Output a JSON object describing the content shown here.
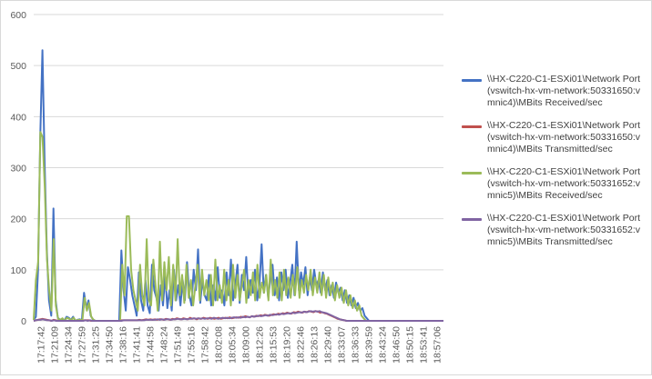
{
  "chart_data": {
    "type": "line",
    "title": "",
    "xlabel": "",
    "ylabel": "",
    "ylim": [
      0,
      600
    ],
    "yticks": [
      0,
      100,
      200,
      300,
      400,
      500,
      600
    ],
    "grid": true,
    "legend_position": "right",
    "x_tick_labels": [
      "17:17:42",
      "17:21:09",
      "17:24:34",
      "17:27:59",
      "17:31:25",
      "17:34:50",
      "17:38:16",
      "17:41:41",
      "17:44:58",
      "17:48:24",
      "17:51:49",
      "17:55:16",
      "17:58:42",
      "18:02:08",
      "18:05:34",
      "18:09:00",
      "18:12:26",
      "18:15:53",
      "18:19:20",
      "18:22:46",
      "18:26:13",
      "18:29:40",
      "18:33:07",
      "18:36:33",
      "18:39:59",
      "18:43:24",
      "18:46:50",
      "18:50:15",
      "18:53:41",
      "18:57:06"
    ],
    "series": [
      {
        "name": "\\\\HX-C220-C1-ESXi01\\Network Port(vswitch-hx-vm-network:50331650:vmnic4)\\MBits Received/sec",
        "color": "#4472C4",
        "values": [
          2,
          8,
          100,
          360,
          530,
          310,
          140,
          40,
          10,
          220,
          40,
          6,
          2,
          4,
          0,
          8,
          6,
          2,
          8,
          0,
          2,
          3,
          1,
          55,
          25,
          40,
          10,
          3,
          0,
          0,
          0,
          0,
          0,
          0,
          0,
          0,
          0,
          0,
          0,
          0,
          138,
          60,
          20,
          105,
          80,
          50,
          30,
          10,
          95,
          40,
          20,
          80,
          30,
          15,
          110,
          60,
          45,
          20,
          70,
          30,
          90,
          25,
          60,
          20,
          100,
          40,
          70,
          30,
          80,
          40,
          115,
          50,
          30,
          100,
          60,
          140,
          35,
          80,
          50,
          40,
          90,
          30,
          70,
          40,
          105,
          45,
          60,
          30,
          95,
          50,
          120,
          40,
          70,
          110,
          35,
          90,
          60,
          125,
          45,
          80,
          55,
          100,
          40,
          70,
          150,
          55,
          90,
          45,
          80,
          110,
          50,
          85,
          40,
          95,
          60,
          100,
          45,
          75,
          110,
          50,
          155,
          60,
          95,
          70,
          105,
          50,
          85,
          60,
          100,
          70,
          80,
          55,
          95,
          60,
          80,
          50,
          70,
          45,
          75,
          55,
          65,
          40,
          60,
          35,
          50,
          30,
          45,
          25,
          35,
          20,
          25,
          10,
          5,
          0,
          0,
          0,
          0,
          0,
          0,
          0,
          0,
          0,
          0,
          0,
          0,
          0,
          0,
          0,
          0,
          0,
          0,
          0,
          0,
          0,
          0,
          0,
          0,
          0,
          0,
          0,
          0,
          0,
          0,
          0,
          0,
          0,
          0,
          0
        ]
      },
      {
        "name": "\\\\HX-C220-C1-ESXi01\\Network Port(vswitch-hx-vm-network:50331650:vmnic4)\\MBits Transmitted/sec",
        "color": "#C0504D",
        "values": [
          0,
          1,
          2,
          3,
          4,
          3,
          2,
          1,
          0,
          2,
          1,
          0,
          0,
          0,
          0,
          0,
          0,
          0,
          0,
          0,
          0,
          0,
          0,
          1,
          1,
          1,
          0,
          0,
          0,
          0,
          0,
          0,
          0,
          0,
          0,
          0,
          0,
          0,
          0,
          0,
          1,
          1,
          1,
          1,
          1,
          1,
          1,
          1,
          2,
          1,
          2,
          3,
          2,
          3,
          2,
          3,
          2,
          3,
          3,
          2,
          4,
          3,
          2,
          4,
          3,
          5,
          4,
          3,
          5,
          4,
          3,
          6,
          4,
          5,
          3,
          5,
          4,
          6,
          5,
          4,
          6,
          5,
          4,
          5,
          6,
          4,
          5,
          6,
          5,
          7,
          5,
          6,
          7,
          6,
          8,
          7,
          9,
          8,
          7,
          9,
          8,
          10,
          9,
          11,
          10,
          12,
          11,
          10,
          12,
          13,
          12,
          14,
          13,
          15,
          14,
          16,
          15,
          14,
          17,
          16,
          18,
          17,
          16,
          18,
          17,
          19,
          18,
          17,
          19,
          18,
          16,
          17,
          15,
          14,
          12,
          10,
          8,
          6,
          4,
          3,
          2,
          1,
          0,
          0,
          0,
          0,
          0,
          0,
          0,
          0,
          0,
          0,
          0,
          0,
          0,
          0,
          0,
          0,
          0,
          0,
          0,
          0,
          0,
          0,
          0,
          0,
          0,
          0,
          0,
          0,
          0,
          0,
          0,
          0,
          0,
          0,
          0,
          0,
          0,
          0,
          0,
          0,
          0,
          0,
          0,
          0,
          0
        ]
      },
      {
        "name": "\\\\HX-C220-C1-ESXi01\\Network Port(vswitch-hx-vm-network:50331652:vmnic5)\\MBits Received/sec",
        "color": "#9BBB59",
        "values": [
          2,
          80,
          115,
          370,
          360,
          260,
          120,
          60,
          20,
          160,
          30,
          4,
          2,
          5,
          0,
          6,
          4,
          2,
          6,
          0,
          2,
          2,
          1,
          45,
          20,
          35,
          8,
          2,
          0,
          0,
          0,
          0,
          0,
          0,
          0,
          0,
          0,
          0,
          0,
          0,
          110,
          50,
          205,
          205,
          100,
          60,
          40,
          20,
          110,
          50,
          30,
          160,
          40,
          30,
          120,
          70,
          20,
          155,
          40,
          115,
          60,
          125,
          30,
          110,
          40,
          160,
          50,
          90,
          35,
          110,
          45,
          80,
          30,
          70,
          110,
          40,
          100,
          50,
          80,
          40,
          90,
          30,
          120,
          40,
          70,
          35,
          100,
          40,
          80,
          30,
          110,
          45,
          90,
          40,
          70,
          100,
          35,
          80,
          50,
          95,
          40,
          110,
          45,
          75,
          55,
          90,
          40,
          120,
          50,
          80,
          45,
          95,
          40,
          100,
          50,
          85,
          45,
          90,
          50,
          105,
          45,
          80,
          55,
          90,
          60,
          100,
          50,
          85,
          55,
          95,
          50,
          90,
          45,
          85,
          50,
          75,
          40,
          70,
          45,
          65,
          35,
          60,
          30,
          50,
          25,
          40,
          20,
          30,
          10,
          5,
          0,
          0,
          0,
          0,
          0,
          0,
          0,
          0,
          0,
          0,
          0,
          0,
          0,
          0,
          0,
          0,
          0,
          0,
          0,
          0,
          0,
          0,
          0,
          0,
          0,
          0,
          0,
          0,
          0,
          0,
          0,
          0,
          0,
          0,
          0,
          0
        ]
      },
      {
        "name": "\\\\HX-C220-C1-ESXi01\\Network Port(vswitch-hx-vm-network:50331652:vmnic5)\\MBits Transmitted/sec",
        "color": "#8064A2",
        "values": [
          0,
          1,
          2,
          2,
          3,
          2,
          1,
          1,
          0,
          1,
          0,
          0,
          0,
          0,
          0,
          0,
          0,
          0,
          0,
          0,
          0,
          0,
          0,
          1,
          0,
          1,
          0,
          0,
          0,
          0,
          0,
          0,
          0,
          0,
          0,
          0,
          0,
          0,
          0,
          0,
          1,
          1,
          1,
          1,
          1,
          1,
          1,
          1,
          1,
          1,
          2,
          2,
          2,
          2,
          2,
          3,
          2,
          3,
          2,
          3,
          3,
          2,
          3,
          3,
          4,
          3,
          3,
          4,
          3,
          4,
          4,
          5,
          4,
          5,
          4,
          5,
          4,
          5,
          5,
          4,
          6,
          5,
          4,
          5,
          6,
          5,
          6,
          5,
          6,
          7,
          6,
          7,
          6,
          8,
          7,
          8,
          7,
          9,
          8,
          9,
          10,
          9,
          10,
          11,
          10,
          12,
          11,
          12,
          13,
          12,
          14,
          13,
          14,
          15,
          14,
          16,
          15,
          16,
          17,
          16,
          18,
          17,
          18,
          19,
          18,
          19,
          18,
          19,
          17,
          16,
          15,
          13,
          11,
          9,
          7,
          5,
          3,
          2,
          1,
          0,
          0,
          0,
          0,
          0,
          0,
          0,
          0,
          0,
          0,
          0,
          0,
          0,
          0,
          0,
          0,
          0,
          0,
          0,
          0,
          0,
          0,
          0,
          0,
          0,
          0,
          0,
          0,
          0,
          0,
          0,
          0,
          0,
          0,
          0,
          0,
          0,
          0,
          0,
          0,
          0,
          0,
          0,
          0
        ]
      }
    ]
  }
}
